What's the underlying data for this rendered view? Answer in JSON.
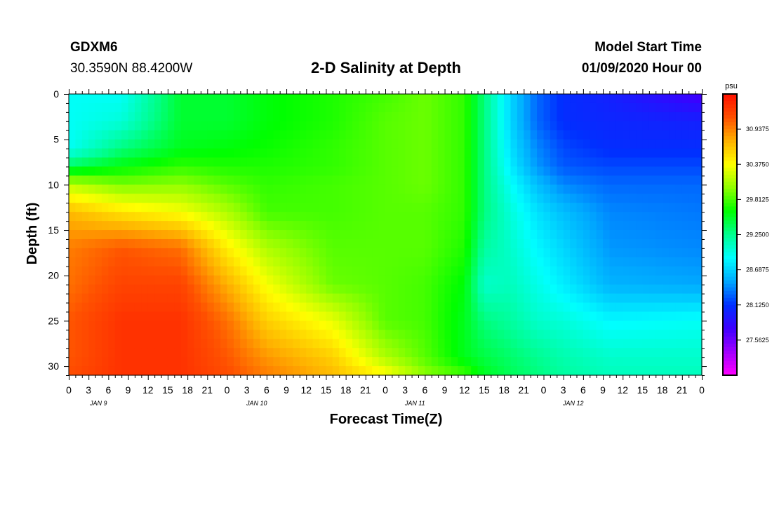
{
  "header": {
    "station": "GDXM6",
    "coords": "30.3590N 88.4200W",
    "title": "2-D Salinity at Depth",
    "model_start_label": "Model Start Time",
    "model_start_value": "01/09/2020 Hour 00"
  },
  "chart_data": {
    "type": "heatmap",
    "title": "2-D Salinity at Depth",
    "xlabel": "Forecast Time(Z)",
    "ylabel": "Depth (ft)",
    "x_tick_labels": [
      "0",
      "3",
      "6",
      "9",
      "12",
      "15",
      "18",
      "21",
      "0",
      "3",
      "6",
      "9",
      "12",
      "15",
      "18",
      "21",
      "0",
      "3",
      "6",
      "9",
      "12",
      "15",
      "18",
      "21",
      "0",
      "3",
      "6",
      "9",
      "12",
      "15",
      "18",
      "21",
      "0"
    ],
    "date_labels": [
      "JAN 9",
      "JAN 10",
      "JAN 11",
      "JAN 12"
    ],
    "xlim": [
      0,
      96
    ],
    "y_ticks": [
      0,
      5,
      10,
      15,
      20,
      25,
      30
    ],
    "ylim": [
      0,
      31
    ],
    "y_inverted": true,
    "colorbar": {
      "unit": "psu",
      "labels": [
        "30.9375",
        "30.3750",
        "29.8125",
        "29.2500",
        "28.6875",
        "28.1250",
        "27.5625"
      ],
      "range": [
        27.0,
        31.5
      ],
      "colors": [
        "#ff00ff",
        "#a000ff",
        "#3c00ff",
        "#0030ff",
        "#00a8ff",
        "#00ffff",
        "#00ff90",
        "#00ff00",
        "#90ff00",
        "#ffff00",
        "#ffb000",
        "#ff5000",
        "#ff1000"
      ]
    },
    "field_grid": {
      "x_hours": [
        0,
        8,
        17,
        24,
        30,
        40,
        48,
        54,
        60,
        63,
        67,
        71,
        75,
        82,
        96
      ],
      "depths_ft": [
        0,
        3,
        6,
        8,
        10,
        13,
        17,
        21,
        25,
        29,
        31
      ],
      "salinity_psu": [
        [
          28.9,
          28.9,
          29.5,
          29.5,
          29.6,
          29.7,
          29.8,
          29.9,
          29.75,
          29.3,
          28.7,
          28.3,
          28.1,
          28.0,
          27.7
        ],
        [
          28.9,
          29.0,
          29.5,
          29.5,
          29.6,
          29.7,
          29.85,
          29.9,
          29.75,
          29.3,
          28.7,
          28.3,
          28.1,
          28.05,
          28.0
        ],
        [
          28.9,
          29.3,
          29.55,
          29.6,
          29.65,
          29.75,
          29.85,
          29.9,
          29.75,
          29.3,
          28.75,
          28.4,
          28.2,
          28.1,
          28.1
        ],
        [
          29.4,
          29.6,
          29.75,
          29.7,
          29.7,
          29.75,
          29.85,
          29.9,
          29.75,
          29.3,
          28.8,
          28.45,
          28.25,
          28.2,
          28.2
        ],
        [
          30.15,
          29.95,
          30.0,
          29.85,
          29.75,
          29.8,
          29.85,
          29.9,
          29.75,
          29.3,
          28.9,
          28.6,
          28.4,
          28.3,
          28.3
        ],
        [
          30.7,
          30.5,
          30.35,
          30.1,
          29.8,
          29.8,
          29.85,
          29.85,
          29.75,
          29.3,
          29.0,
          28.75,
          28.6,
          28.4,
          28.35
        ],
        [
          30.95,
          31.1,
          31.0,
          30.45,
          30.1,
          29.85,
          29.85,
          29.85,
          29.7,
          29.2,
          29.05,
          28.85,
          28.7,
          28.45,
          28.4
        ],
        [
          31.0,
          31.2,
          31.2,
          30.75,
          30.35,
          29.9,
          29.85,
          29.8,
          29.6,
          29.05,
          29.1,
          28.95,
          28.8,
          28.55,
          28.5
        ],
        [
          31.1,
          31.3,
          31.3,
          31.0,
          30.6,
          30.3,
          29.85,
          29.8,
          29.55,
          29.3,
          29.2,
          29.05,
          29.0,
          28.85,
          28.9
        ],
        [
          31.1,
          31.3,
          31.3,
          31.1,
          30.85,
          30.6,
          30.1,
          29.85,
          29.55,
          29.45,
          29.35,
          29.25,
          29.15,
          29.05,
          29.05
        ],
        [
          31.15,
          31.3,
          31.3,
          31.15,
          30.95,
          30.7,
          30.4,
          30.0,
          29.8,
          29.55,
          29.4,
          29.3,
          29.2,
          29.1,
          29.1
        ]
      ]
    },
    "grid": false,
    "legend": "right"
  }
}
